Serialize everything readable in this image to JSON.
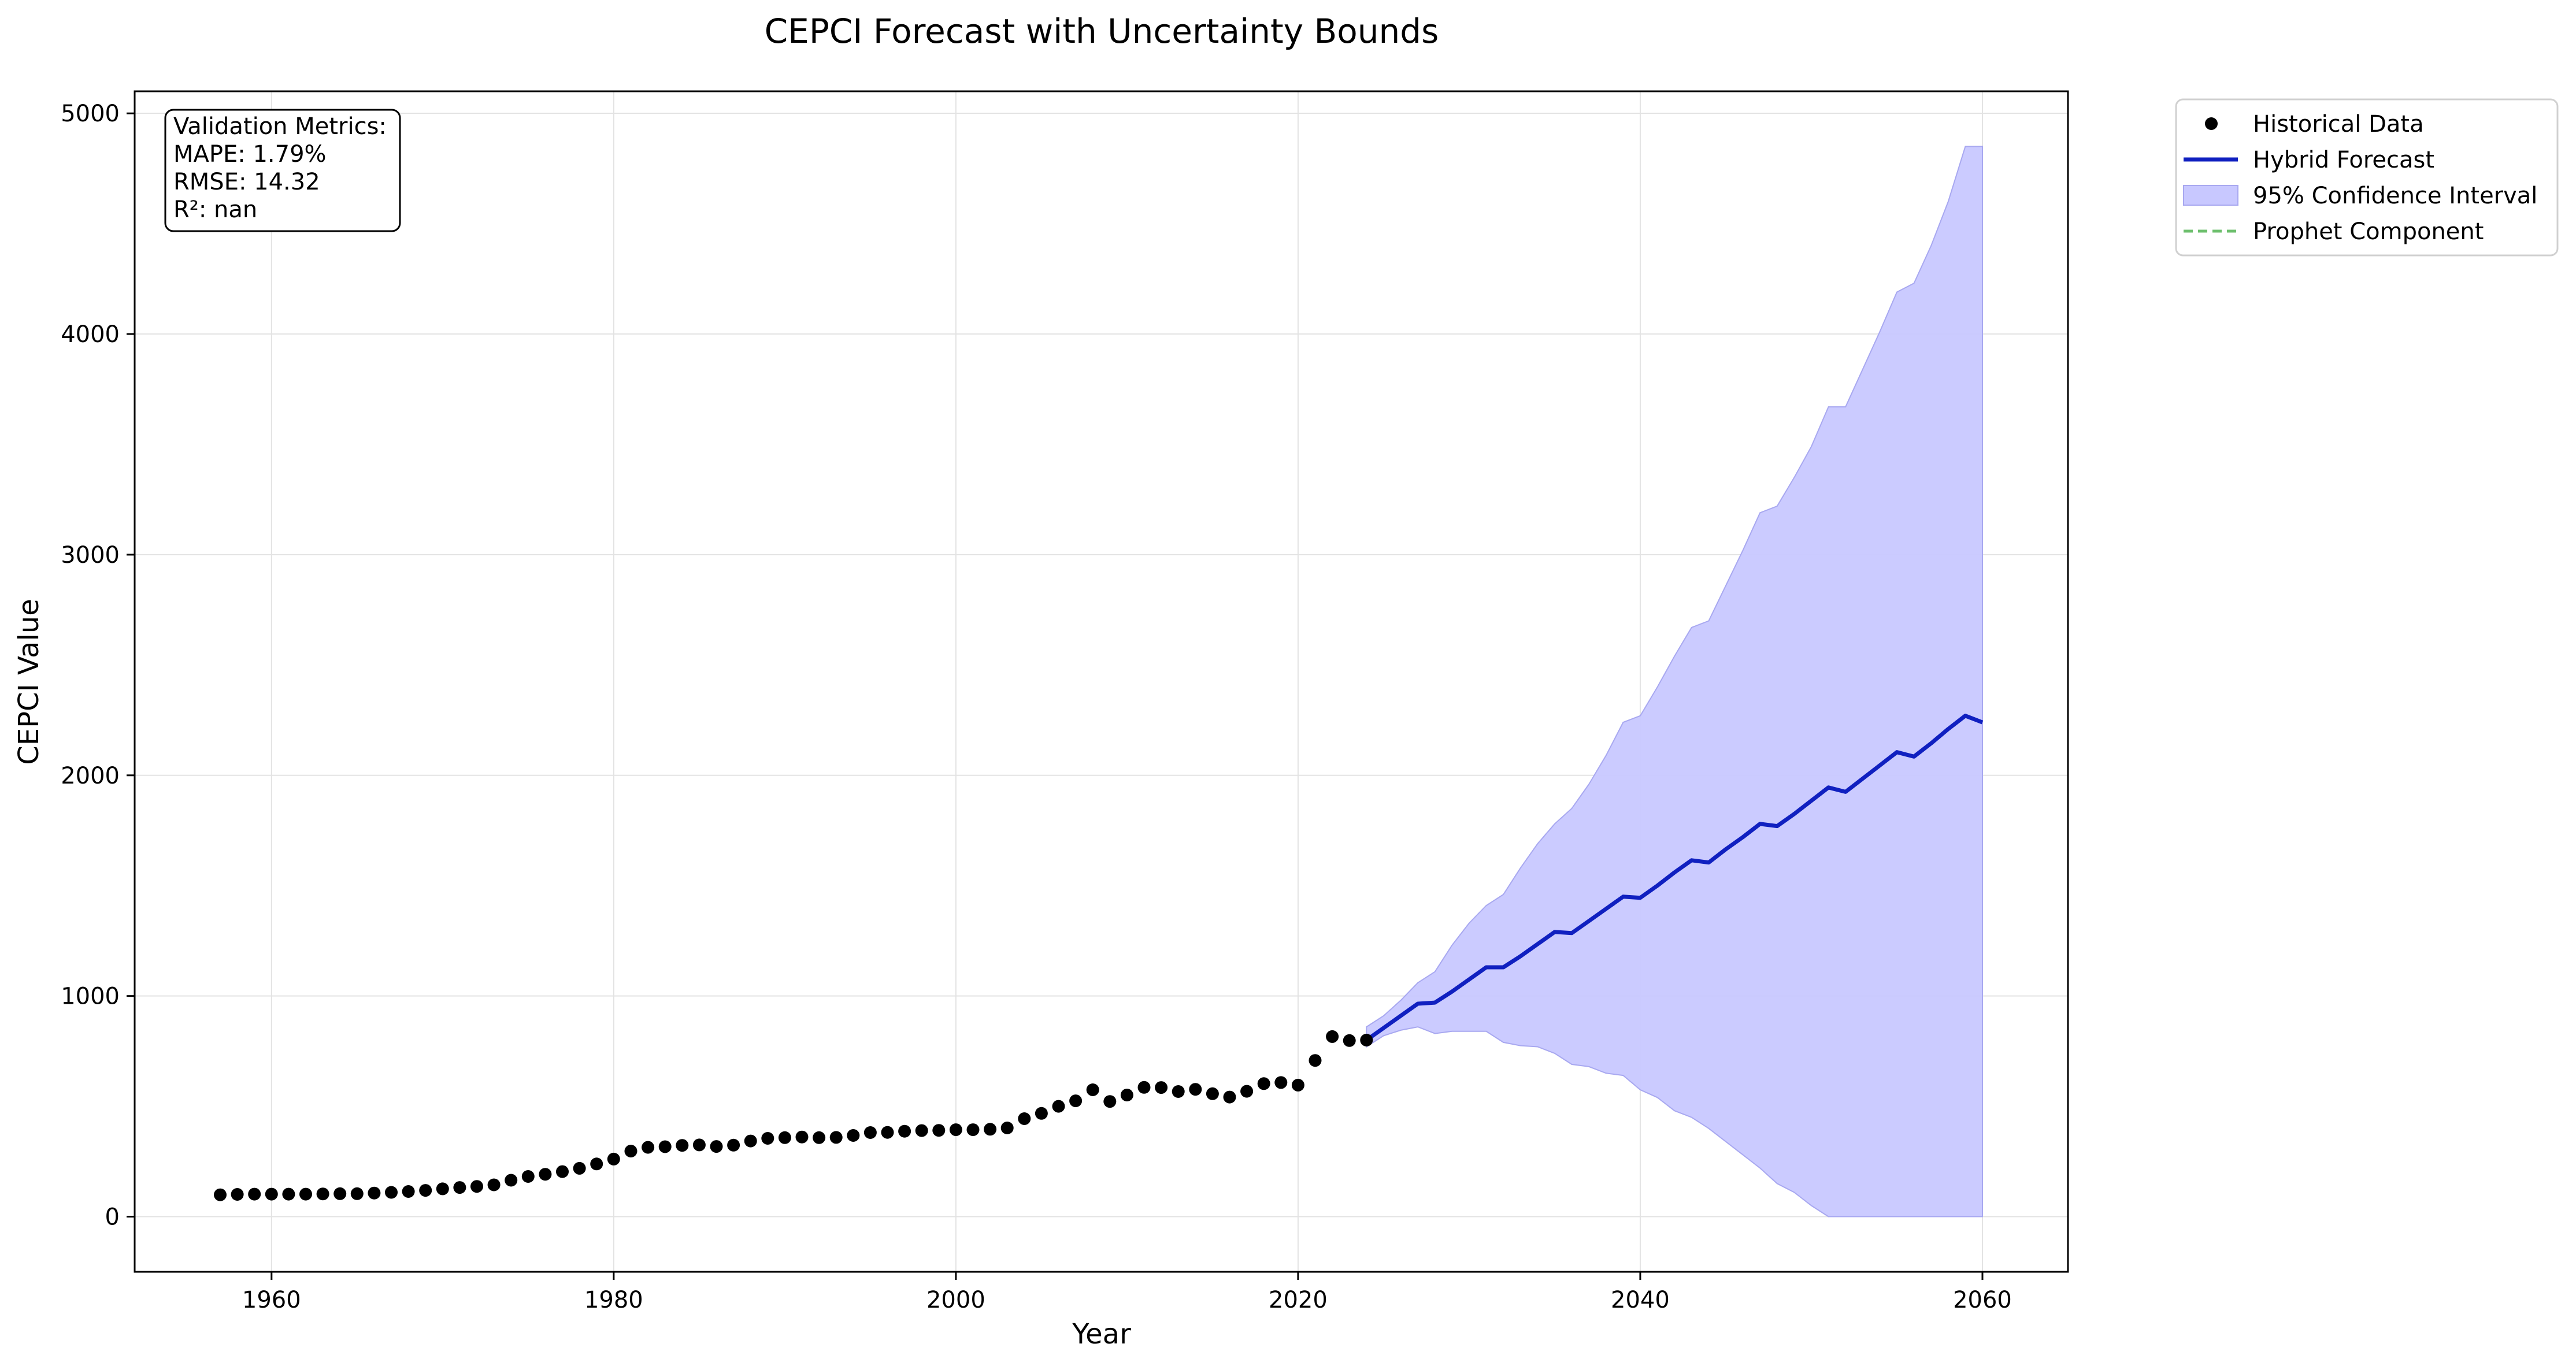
{
  "chart_data": {
    "type": "line",
    "title": "CEPCI Forecast with Uncertainty Bounds",
    "xlabel": "Year",
    "ylabel": "CEPCI Value",
    "xlim": [
      1952,
      2065
    ],
    "ylim": [
      -250,
      5100
    ],
    "xticks": [
      1960,
      1980,
      2000,
      2020,
      2040,
      2060
    ],
    "yticks": [
      0,
      1000,
      2000,
      3000,
      4000,
      5000
    ],
    "grid": true,
    "legend_position": "outside-top-right",
    "legend": [
      {
        "label": "Historical Data",
        "kind": "scatter",
        "color": "#000000"
      },
      {
        "label": "Hybrid Forecast",
        "kind": "line",
        "color": "#1020c0"
      },
      {
        "label": "95% Confidence Interval",
        "kind": "area",
        "color": "#c8c8ff"
      },
      {
        "label": "Prophet Component",
        "kind": "dashed",
        "color": "#6dbf6d"
      }
    ],
    "metrics": [
      "Validation Metrics:",
      "MAPE: 1.79%",
      "RMSE: 14.32",
      "R²: nan"
    ],
    "series": [
      {
        "name": "Historical Data",
        "type": "scatter",
        "color": "#000000",
        "x": [
          1957,
          1958,
          1959,
          1960,
          1961,
          1962,
          1963,
          1964,
          1965,
          1966,
          1967,
          1968,
          1969,
          1970,
          1971,
          1972,
          1973,
          1974,
          1975,
          1976,
          1977,
          1978,
          1979,
          1980,
          1981,
          1982,
          1983,
          1984,
          1985,
          1986,
          1987,
          1988,
          1989,
          1990,
          1991,
          1992,
          1993,
          1994,
          1995,
          1996,
          1997,
          1998,
          1999,
          2000,
          2001,
          2002,
          2003,
          2004,
          2005,
          2006,
          2007,
          2008,
          2009,
          2010,
          2011,
          2012,
          2013,
          2014,
          2015,
          2016,
          2017,
          2018,
          2019,
          2020,
          2021,
          2022,
          2023,
          2024
        ],
        "y": [
          99,
          101,
          102,
          102,
          102,
          102,
          103,
          104,
          104,
          107,
          110,
          114,
          119,
          126,
          132,
          137,
          144,
          165,
          182,
          192,
          204,
          219,
          239,
          261,
          297,
          314,
          317,
          323,
          325,
          318,
          324,
          343,
          355,
          358,
          361,
          358,
          359,
          368,
          381,
          382,
          387,
          390,
          391,
          394,
          394,
          396,
          402,
          444,
          468,
          500,
          525,
          575,
          522,
          551,
          586,
          585,
          567,
          577,
          557,
          542,
          568,
          603,
          608,
          596,
          708,
          816,
          798,
          800
        ]
      },
      {
        "name": "Hybrid Forecast",
        "type": "line",
        "color": "#1020c0",
        "x": [
          2024,
          2025,
          2026,
          2027,
          2028,
          2029,
          2030,
          2031,
          2032,
          2033,
          2034,
          2035,
          2036,
          2037,
          2038,
          2039,
          2040,
          2041,
          2042,
          2043,
          2044,
          2045,
          2046,
          2047,
          2048,
          2049,
          2050,
          2051,
          2052,
          2053,
          2054,
          2055,
          2056,
          2057,
          2058,
          2059,
          2060
        ],
        "y": [
          800,
          855,
          910,
          965,
          970,
          1020,
          1075,
          1130,
          1130,
          1180,
          1235,
          1290,
          1285,
          1340,
          1395,
          1450,
          1445,
          1500,
          1560,
          1615,
          1605,
          1665,
          1720,
          1780,
          1770,
          1825,
          1885,
          1945,
          1925,
          1985,
          2045,
          2105,
          2085,
          2145,
          2210,
          2270,
          2240
        ]
      },
      {
        "name": "95% Confidence Interval",
        "type": "area",
        "color": "#c8c8ff",
        "x": [
          2024,
          2025,
          2026,
          2027,
          2028,
          2029,
          2030,
          2031,
          2032,
          2033,
          2034,
          2035,
          2036,
          2037,
          2038,
          2039,
          2040,
          2041,
          2042,
          2043,
          2044,
          2045,
          2046,
          2047,
          2048,
          2049,
          2050,
          2051,
          2052,
          2053,
          2054,
          2055,
          2056,
          2057,
          2058,
          2059,
          2060
        ],
        "lower": [
          770,
          820,
          845,
          860,
          830,
          840,
          840,
          840,
          790,
          775,
          770,
          740,
          690,
          680,
          650,
          640,
          575,
          540,
          480,
          450,
          400,
          340,
          280,
          220,
          150,
          110,
          50,
          0,
          0,
          0,
          0,
          0,
          0,
          0,
          0,
          0,
          0
        ],
        "upper": [
          860,
          910,
          980,
          1060,
          1110,
          1230,
          1330,
          1410,
          1460,
          1580,
          1690,
          1780,
          1850,
          1960,
          2090,
          2240,
          2270,
          2400,
          2540,
          2670,
          2700,
          2860,
          3020,
          3190,
          3220,
          3350,
          3490,
          3670,
          3670,
          3840,
          4010,
          4190,
          4230,
          4400,
          4600,
          4850,
          4850
        ]
      }
    ]
  }
}
